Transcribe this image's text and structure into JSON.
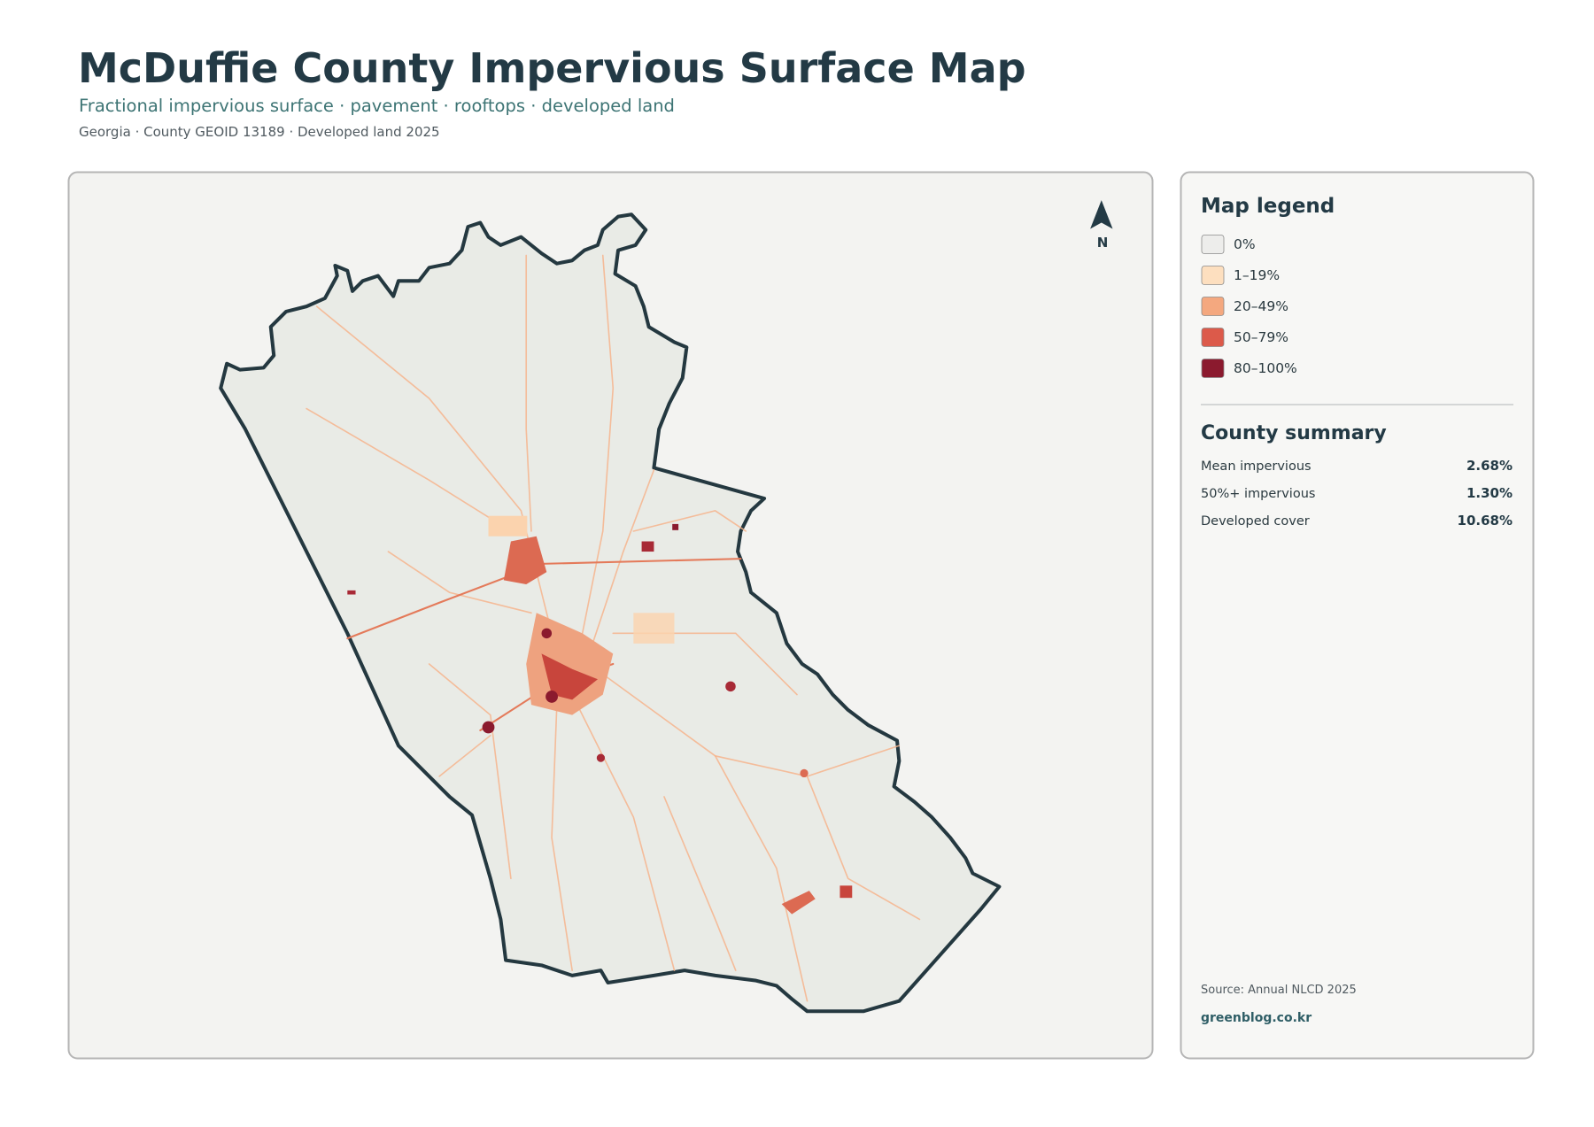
{
  "header": {
    "title": "McDuffie County Impervious Surface Map",
    "subtitle": "Fractional impervious surface · pavement · rooftops · developed land",
    "meta": "Georgia · County GEOID 13189 · Developed land 2025"
  },
  "map": {
    "north_label": "N"
  },
  "legend": {
    "title": "Map legend",
    "items": [
      {
        "label": "0%",
        "color": "#ededeb"
      },
      {
        "label": "1–19%",
        "color": "#fddfbf"
      },
      {
        "label": "20–49%",
        "color": "#f4a87f"
      },
      {
        "label": "50–79%",
        "color": "#dc5a4a"
      },
      {
        "label": "80–100%",
        "color": "#8b1a2e"
      }
    ]
  },
  "summary": {
    "title": "County summary",
    "rows": [
      {
        "label": "Mean impervious",
        "value": "2.68%"
      },
      {
        "label": "50%+ impervious",
        "value": "1.30%"
      },
      {
        "label": "Developed cover",
        "value": "10.68%"
      }
    ]
  },
  "footer": {
    "source": "Source: Annual NLCD 2025",
    "site": "greenblog.co.kr"
  }
}
